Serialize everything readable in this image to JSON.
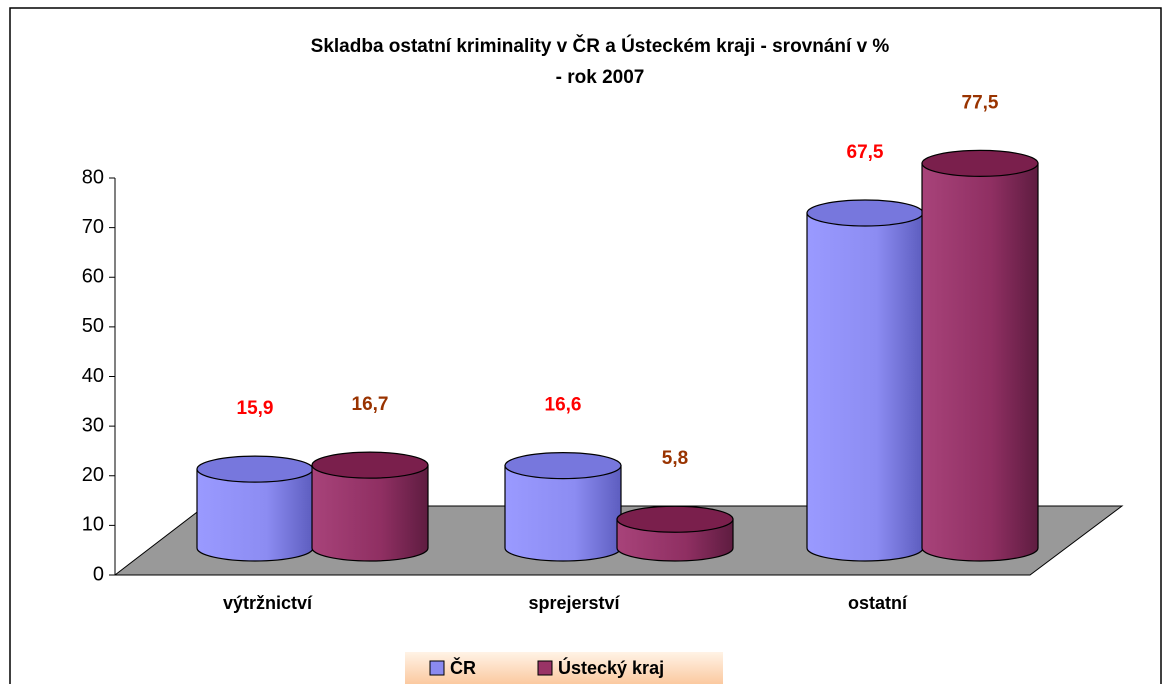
{
  "chart_data": {
    "type": "bar3d",
    "title": [
      "Skladba ostatní kriminality v ČR a Ústeckém kraji - srovnání v %",
      "- rok 2007"
    ],
    "categories": [
      "výtržnictví",
      "sprejerství",
      "ostatní"
    ],
    "series": [
      {
        "name": "ČR",
        "color": "#8a8af0",
        "label_color": "#ff0000",
        "values": [
          15.9,
          16.6,
          67.5
        ],
        "value_labels": [
          "15,9",
          "16,6",
          "67,5"
        ]
      },
      {
        "name": "Ústecký kraj",
        "color": "#993366",
        "label_color": "#993300",
        "values": [
          16.7,
          5.8,
          77.5
        ],
        "value_labels": [
          "16,7",
          "5,8",
          "77,5"
        ]
      }
    ],
    "ylim": [
      0,
      80
    ],
    "yticks": [
      0,
      10,
      20,
      30,
      40,
      50,
      60,
      70,
      80
    ]
  }
}
